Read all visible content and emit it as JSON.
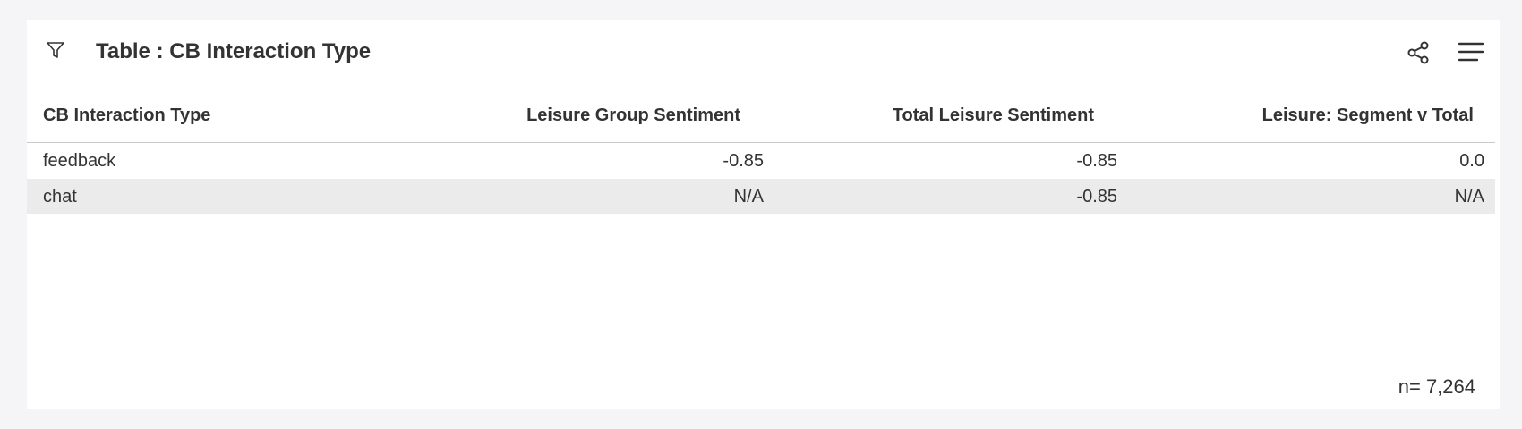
{
  "widget": {
    "title": "Table : CB Interaction Type",
    "icons": [
      "filter-icon",
      "share-icon",
      "menu-icon"
    ]
  },
  "table": {
    "columns": [
      "CB Interaction Type",
      "Leisure Group Sentiment",
      "Total Leisure Sentiment",
      "Leisure: Segment v Total"
    ],
    "rows": [
      [
        "feedback",
        "-0.85",
        "-0.85",
        "0.0"
      ],
      [
        "chat",
        "N/A",
        "-0.85",
        "N/A"
      ]
    ]
  },
  "footer": {
    "count": "n= 7,264"
  }
}
